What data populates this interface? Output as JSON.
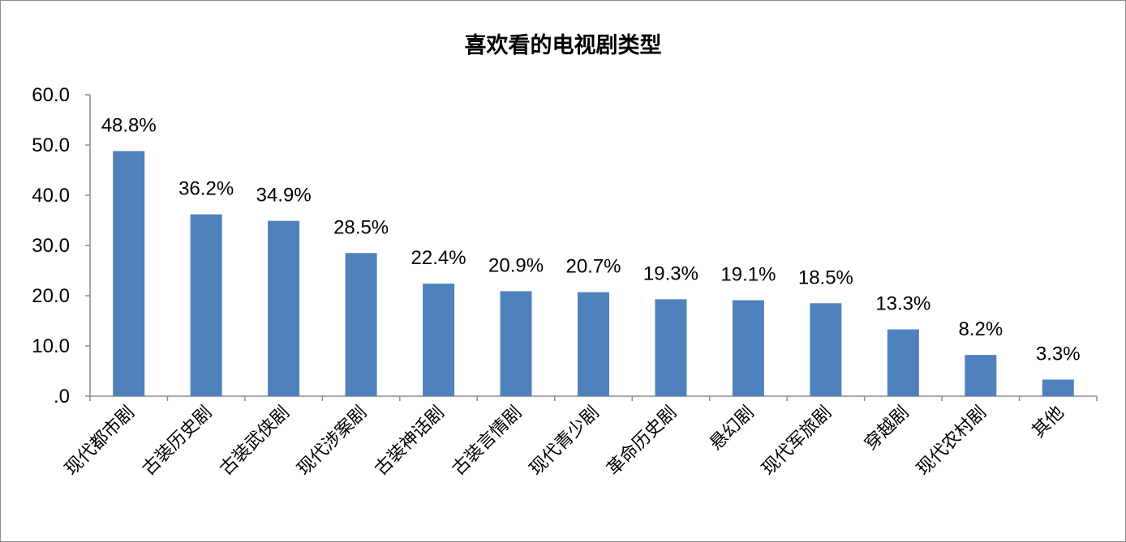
{
  "chart_data": {
    "type": "bar",
    "title": "喜欢看的电视剧类型",
    "xlabel": "",
    "ylabel": "",
    "ylim": [
      0,
      60
    ],
    "yticks": [
      ".0",
      "10.0",
      "20.0",
      "30.0",
      "40.0",
      "50.0",
      "60.0"
    ],
    "categories": [
      "现代都市剧",
      "古装历史剧",
      "古装武侠剧",
      "现代涉案剧",
      "古装神话剧",
      "古装言情剧",
      "现代青少剧",
      "革命历史剧",
      "悬幻剧",
      "现代军旅剧",
      "穿越剧",
      "现代农村剧",
      "其他"
    ],
    "values": [
      48.8,
      36.2,
      34.9,
      28.5,
      22.4,
      20.9,
      20.7,
      19.3,
      19.1,
      18.5,
      13.3,
      8.2,
      3.3
    ],
    "data_labels": [
      "48.8%",
      "36.2%",
      "34.9%",
      "28.5%",
      "22.4%",
      "20.9%",
      "20.7%",
      "19.3%",
      "19.1%",
      "18.5%",
      "13.3%",
      "8.2%",
      "3.3%"
    ],
    "bar_color": "#4f81bd",
    "grid": false,
    "legend": "none"
  }
}
